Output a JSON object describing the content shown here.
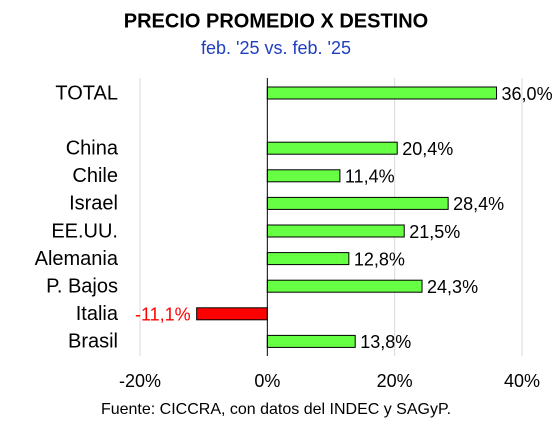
{
  "chart_data": {
    "type": "bar",
    "orientation": "horizontal",
    "title": "PRECIO PROMEDIO X DESTINO",
    "subtitle": "feb. '25 vs. feb. '25",
    "categories": [
      "TOTAL",
      null,
      "China",
      "Chile",
      "Israel",
      "EE.UU.",
      "Alemania",
      "P. Bajos",
      "Italia",
      "Brasil"
    ],
    "values": [
      36.0,
      null,
      20.4,
      11.4,
      28.4,
      21.5,
      12.8,
      24.3,
      -11.1,
      13.8
    ],
    "value_labels": [
      "36,0%",
      null,
      "20,4%",
      "11,4%",
      "28,4%",
      "21,5%",
      "12,8%",
      "24,3%",
      "-11,1%",
      "13,8%"
    ],
    "color": "#66ff44",
    "negative_color": "#ff0000",
    "xlim": [
      -20,
      40
    ],
    "xticks": [
      {
        "value": -20,
        "label": "-20%"
      },
      {
        "value": 0,
        "label": "0%"
      },
      {
        "value": 20,
        "label": "20%"
      },
      {
        "value": 40,
        "label": "40%"
      }
    ],
    "grid": true,
    "source": "Fuente: CICCRA, con datos del INDEC y SAGyP."
  }
}
